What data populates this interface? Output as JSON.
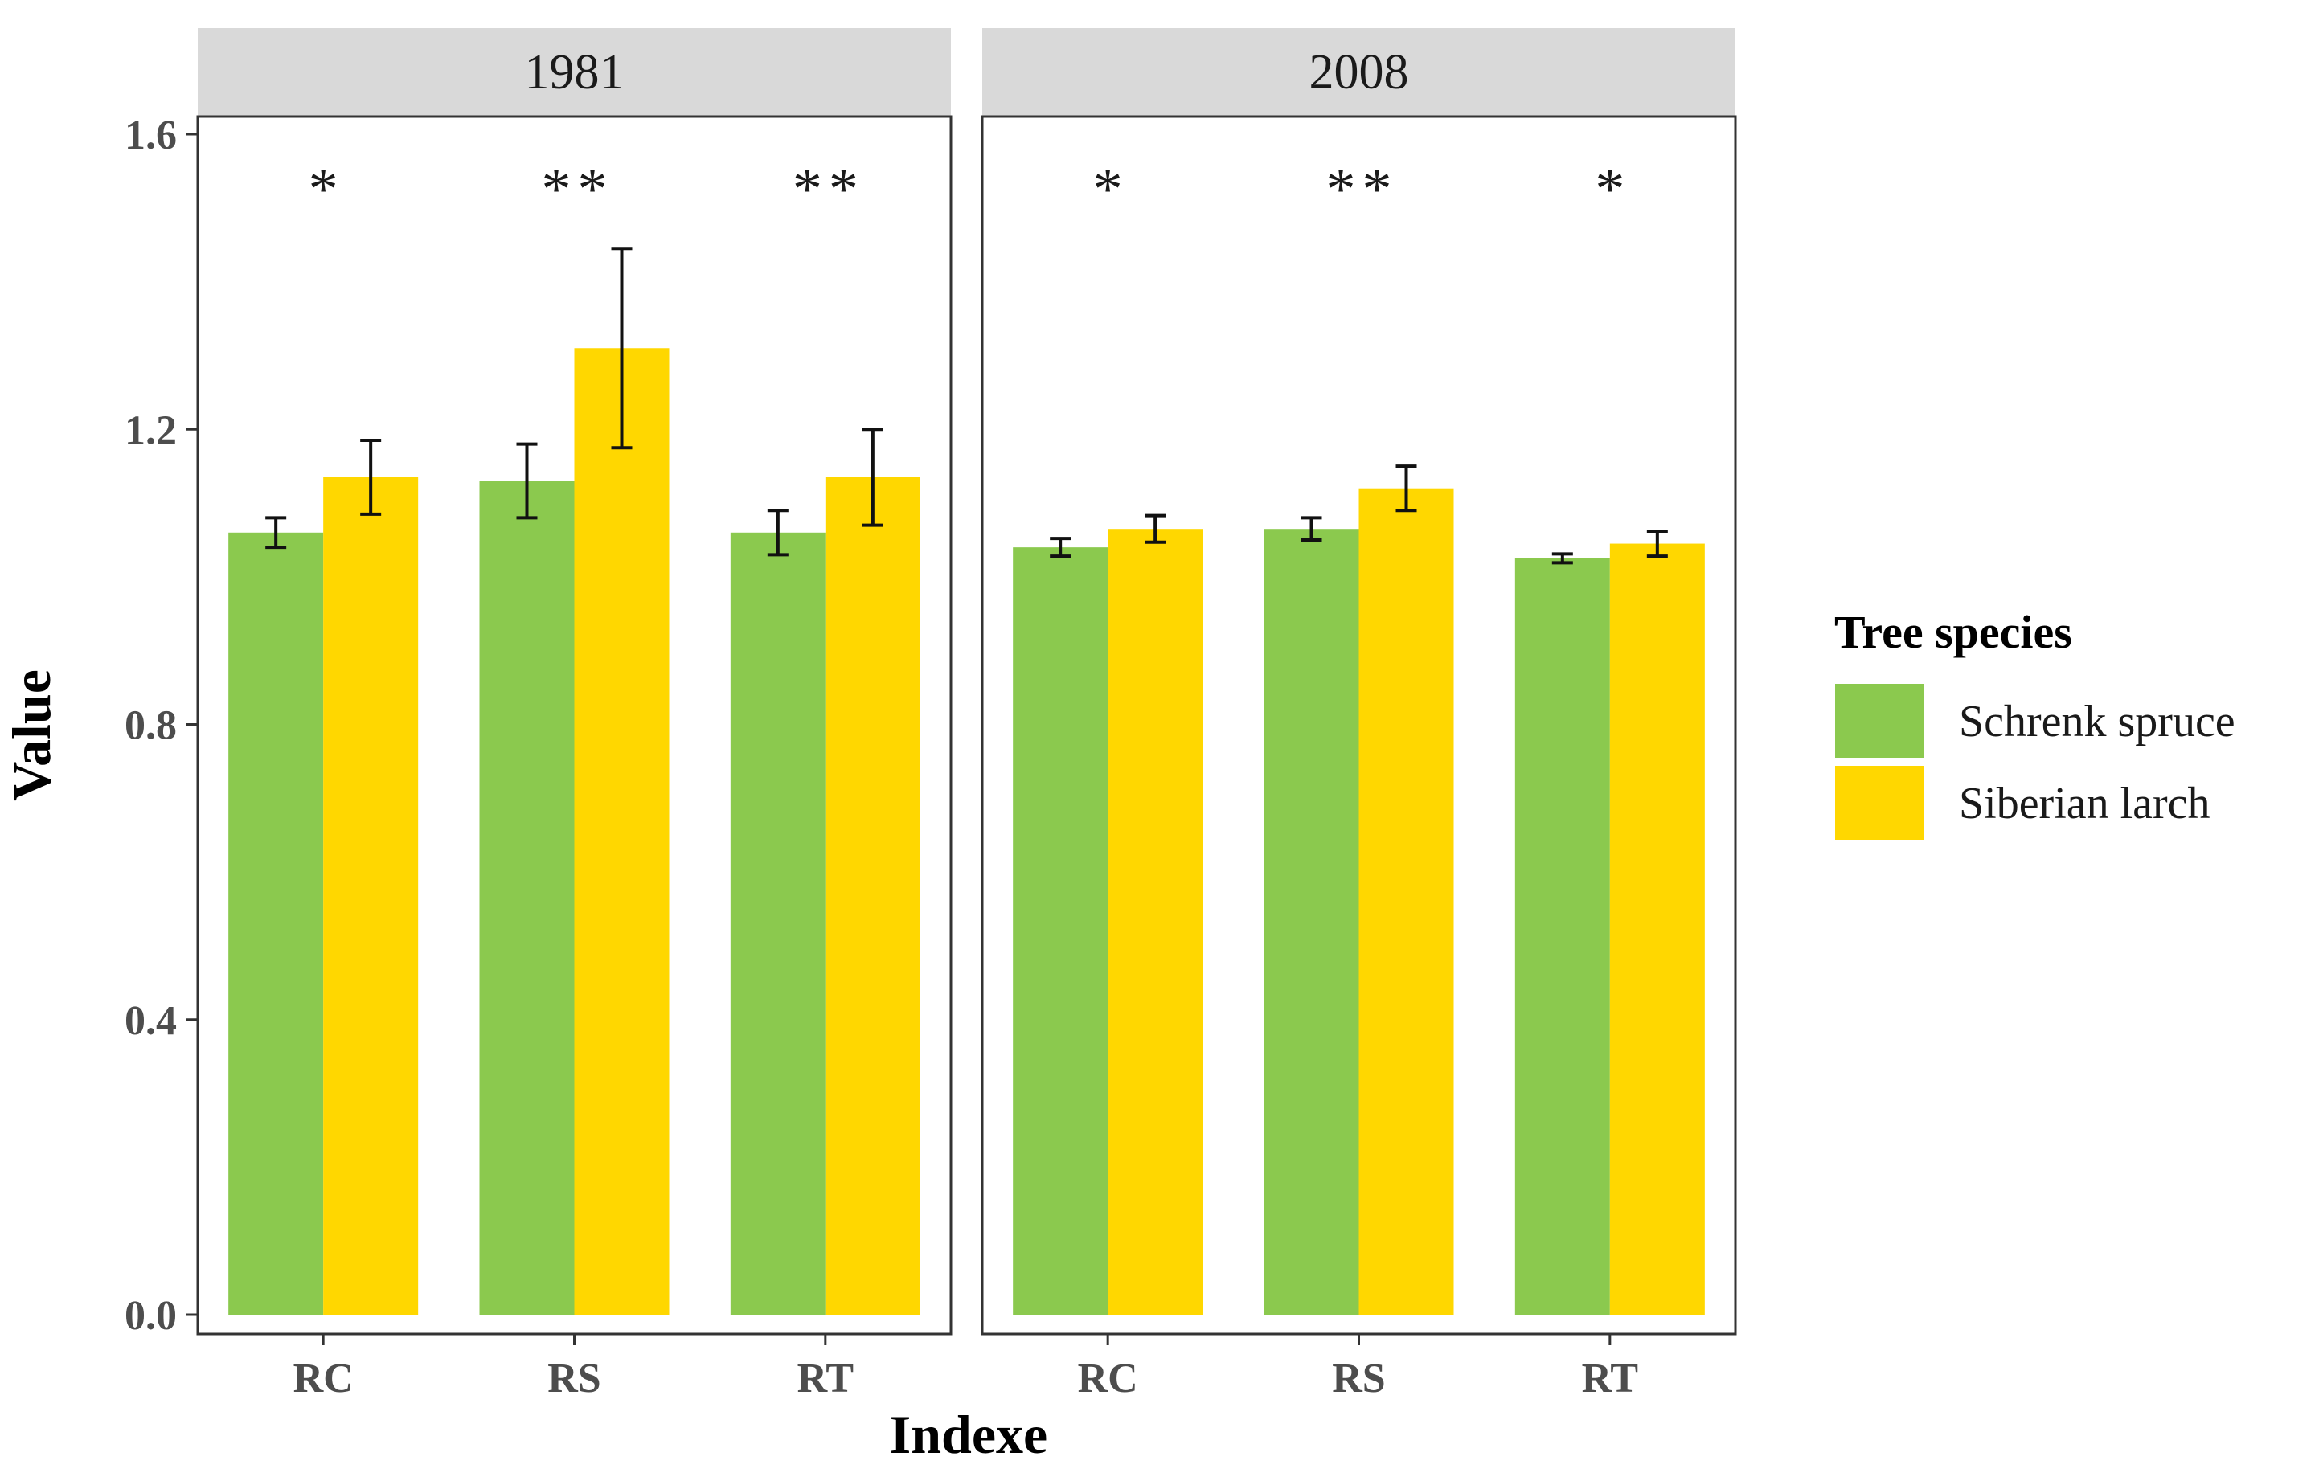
{
  "chart_data": {
    "type": "bar",
    "xlabel": "Indexe",
    "ylabel": "Value",
    "ylim": [
      0,
      1.6
    ],
    "yticks": [
      "0.0",
      "0.4",
      "0.8",
      "1.2",
      "1.6"
    ],
    "categories": [
      "RC",
      "RS",
      "RT"
    ],
    "legend": {
      "title": "Tree species",
      "placement": "right",
      "entries": [
        "Schrenk spruce",
        "Siberian larch"
      ]
    },
    "colors": {
      "Schrenk spruce": "#8BC94E",
      "Siberian larch": "#FFD700"
    },
    "panels": [
      {
        "title": "1981",
        "significance": [
          "*",
          "**",
          "**"
        ],
        "series": [
          {
            "name": "Schrenk spruce",
            "values": [
              1.06,
              1.13,
              1.06
            ],
            "errors": [
              0.02,
              0.05,
              0.03
            ]
          },
          {
            "name": "Siberian larch",
            "values": [
              1.135,
              1.31,
              1.135
            ],
            "errors": [
              0.05,
              0.135,
              0.065
            ]
          }
        ]
      },
      {
        "title": "2008",
        "significance": [
          "*",
          "**",
          "*"
        ],
        "series": [
          {
            "name": "Schrenk spruce",
            "values": [
              1.04,
              1.065,
              1.025
            ],
            "errors": [
              0.012,
              0.015,
              0.006
            ]
          },
          {
            "name": "Siberian larch",
            "values": [
              1.065,
              1.12,
              1.045
            ],
            "errors": [
              0.018,
              0.03,
              0.017
            ]
          }
        ]
      }
    ]
  }
}
